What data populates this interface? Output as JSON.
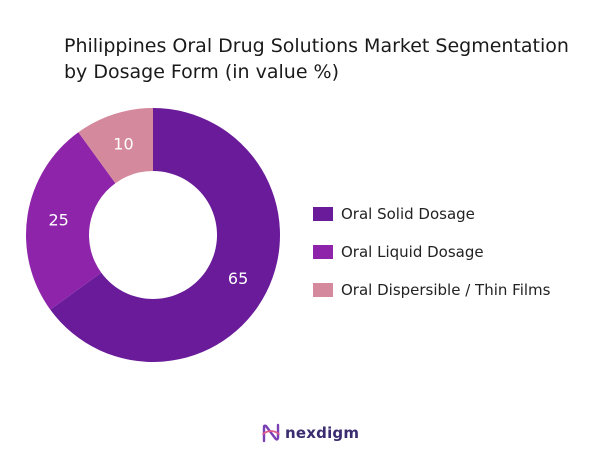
{
  "title": "Philippines Oral Drug Solutions Market Segmentation by Dosage Form (in value %)",
  "chart_data": {
    "type": "pie",
    "donut": true,
    "categories": [
      "Oral Solid Dosage",
      "Oral Liquid Dosage",
      "Oral Dispersible / Thin Films"
    ],
    "values": [
      65,
      25,
      10
    ],
    "data_labels": [
      "65",
      "25",
      "10"
    ],
    "colors": [
      "#6a1b9a",
      "#8e24aa",
      "#d48a9c"
    ],
    "legend_position": "right"
  },
  "legend": {
    "items": [
      {
        "label": "Oral Solid Dosage",
        "color": "#6a1b9a"
      },
      {
        "label": "Oral Liquid Dosage",
        "color": "#8e24aa"
      },
      {
        "label": "Oral Dispersible / Thin Films",
        "color": "#d48a9c"
      }
    ]
  },
  "brand": {
    "name": "nexdigm",
    "icon": "nexdigm-logo-icon"
  }
}
